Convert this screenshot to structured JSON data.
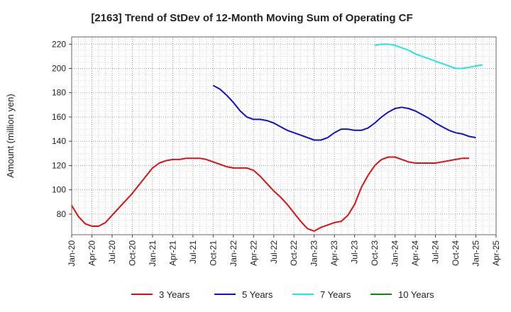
{
  "chart_data": {
    "type": "line",
    "title": "[2163]  Trend of StDev of 12-Month Moving Sum of Operating CF",
    "ylabel": "Amount (million yen)",
    "xlabel": "",
    "ylim": [
      63,
      226
    ],
    "yticks": [
      80,
      100,
      120,
      140,
      160,
      180,
      200,
      220
    ],
    "xticks": [
      "Jan-20",
      "Apr-20",
      "Jul-20",
      "Oct-20",
      "Jan-21",
      "Apr-21",
      "Jul-21",
      "Oct-21",
      "Jan-22",
      "Apr-22",
      "Jul-22",
      "Oct-22",
      "Jan-23",
      "Apr-23",
      "Jul-23",
      "Oct-23",
      "Jan-24",
      "Apr-24",
      "Jul-24",
      "Oct-24",
      "Jan-25",
      "Apr-25"
    ],
    "grid": true,
    "legend_position": "bottom",
    "series": [
      {
        "name": "3 Years",
        "color": "#dd1111",
        "start_index": 0,
        "values": [
          87,
          78,
          72,
          70,
          70,
          73,
          79,
          85,
          91,
          97,
          104,
          111,
          118,
          122,
          124,
          125,
          125,
          126,
          126,
          126,
          125,
          123,
          121,
          119,
          118,
          118,
          118,
          116,
          111,
          105,
          99,
          94,
          88,
          81,
          74,
          68,
          66,
          69,
          71,
          73,
          74,
          79,
          88,
          102,
          112,
          120,
          125,
          127,
          127,
          125,
          123,
          122,
          122,
          122,
          122,
          123,
          124,
          125,
          126,
          126
        ]
      },
      {
        "name": "5 Years",
        "color": "#1111cc",
        "start_index": 21,
        "values": [
          186,
          183,
          178,
          172,
          165,
          160,
          158,
          158,
          157,
          155,
          152,
          149,
          147,
          145,
          143,
          141,
          141,
          143,
          147,
          150,
          150,
          149,
          149,
          151,
          155,
          160,
          164,
          167,
          168,
          167,
          165,
          162,
          159,
          155,
          152,
          149,
          147,
          146,
          144,
          143
        ]
      },
      {
        "name": "7 Years",
        "color": "#22e5e5",
        "start_index": 45,
        "values": [
          219,
          220,
          220,
          219,
          217,
          215,
          212,
          210,
          208,
          206,
          204,
          202,
          200,
          200,
          201,
          202,
          203
        ]
      },
      {
        "name": "10 Years",
        "color": "#118811",
        "start_index": 0,
        "values": []
      }
    ]
  }
}
